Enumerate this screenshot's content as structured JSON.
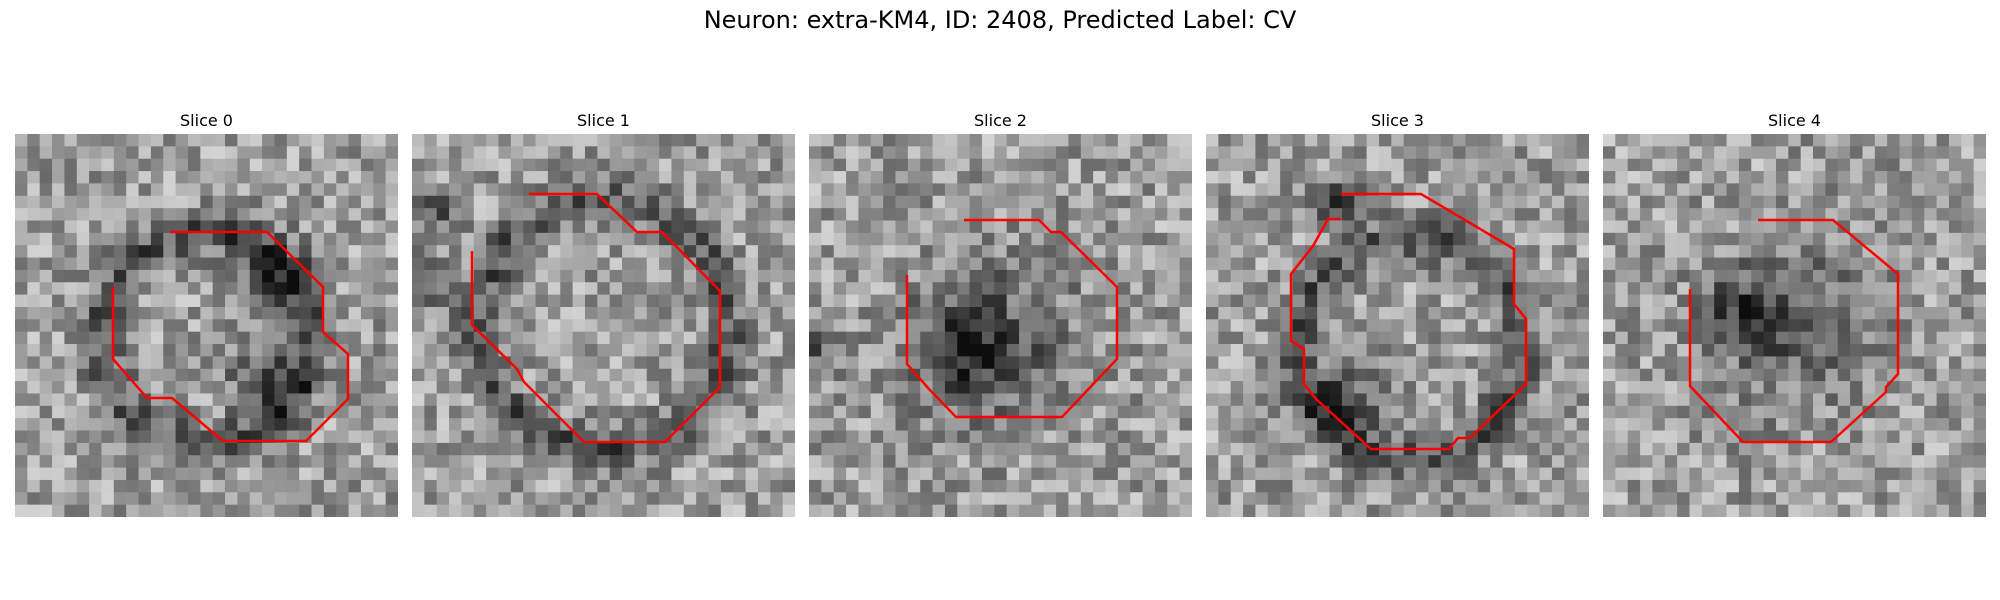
{
  "figure": {
    "title": "Neuron: extra-KM4, ID: 2408, Predicted Label: CV"
  },
  "colors": {
    "contour": "#ff0000",
    "background": "#ffffff"
  },
  "panels": [
    {
      "title": "Slice 0",
      "image": "grayscale-microscopy-patch",
      "overlay": "red-octagonal-contour"
    },
    {
      "title": "Slice 1",
      "image": "grayscale-microscopy-patch",
      "overlay": "red-octagonal-contour"
    },
    {
      "title": "Slice 2",
      "image": "grayscale-microscopy-patch",
      "overlay": "red-octagonal-contour"
    },
    {
      "title": "Slice 3",
      "image": "grayscale-microscopy-patch",
      "overlay": "red-octagonal-contour"
    },
    {
      "title": "Slice 4",
      "image": "grayscale-microscopy-patch",
      "overlay": "red-octagonal-contour"
    }
  ]
}
